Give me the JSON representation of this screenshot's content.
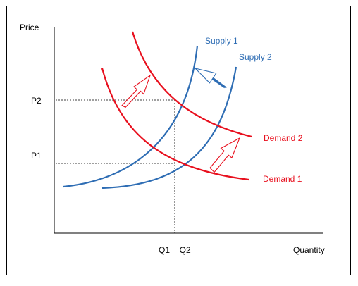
{
  "diagram": {
    "y_axis_label": "Price",
    "x_axis_label": "Quantity",
    "price_ticks": [
      "P2",
      "P1"
    ],
    "quantity_tick": "Q1 = Q2",
    "curves": {
      "supply_1": "Supply 1",
      "supply_2": "Supply 2",
      "demand_2": "Demand 2",
      "demand_1": "Demand 1"
    },
    "colors": {
      "supply": "#2e6db4",
      "demand": "#e8101e",
      "guide": "#000000",
      "shift_arrow_supply": "#2e6db4",
      "shift_arrow_demand": "#e8101e"
    }
  }
}
